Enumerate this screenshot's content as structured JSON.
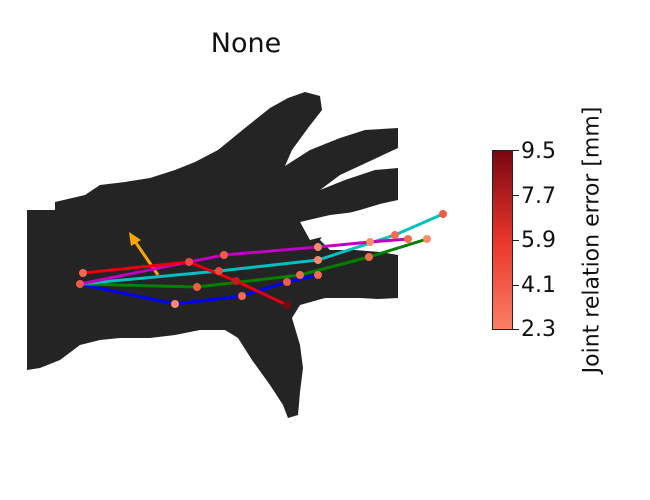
{
  "title": "None",
  "colorbar": {
    "label": "Joint relation error [mm]",
    "ticks": [
      "9.5",
      "7.7",
      "5.9",
      "4.1",
      "2.3"
    ],
    "min": 2.3,
    "max": 9.5,
    "colors": {
      "low": "#fb7f63",
      "mid": "#e8362a",
      "high": "#7a0612"
    }
  },
  "skeleton": {
    "finger_colors": [
      "#ff0000",
      "#bf00bf",
      "#00bfbf",
      "#008000",
      "#0000ff"
    ],
    "arrow_color": "#ffa500",
    "hand_color": "#242424"
  }
}
